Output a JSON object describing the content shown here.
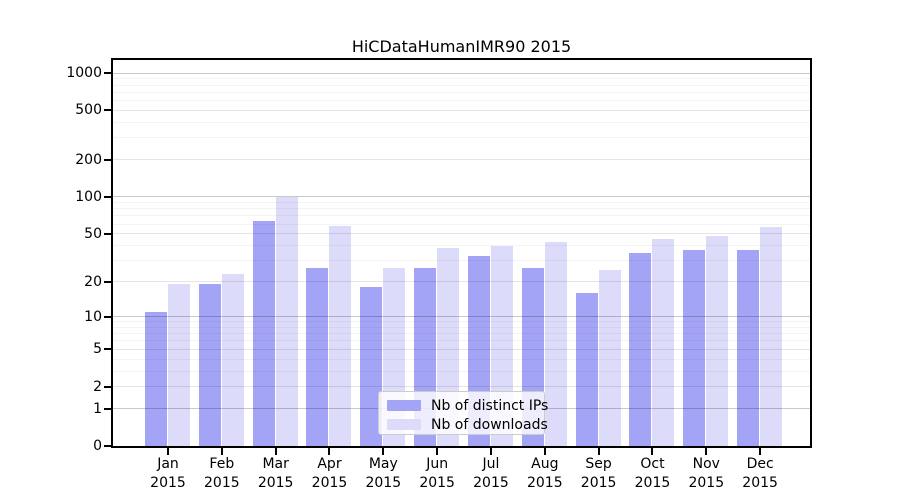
{
  "chart_data": {
    "type": "bar",
    "title": "HiCDataHumanIMR90 2015",
    "categories": [
      {
        "month": "Jan",
        "year": "2015"
      },
      {
        "month": "Feb",
        "year": "2015"
      },
      {
        "month": "Mar",
        "year": "2015"
      },
      {
        "month": "Apr",
        "year": "2015"
      },
      {
        "month": "May",
        "year": "2015"
      },
      {
        "month": "Jun",
        "year": "2015"
      },
      {
        "month": "Jul",
        "year": "2015"
      },
      {
        "month": "Aug",
        "year": "2015"
      },
      {
        "month": "Sep",
        "year": "2015"
      },
      {
        "month": "Oct",
        "year": "2015"
      },
      {
        "month": "Nov",
        "year": "2015"
      },
      {
        "month": "Dec",
        "year": "2015"
      }
    ],
    "series": [
      {
        "name": "Nb of distinct IPs",
        "color": "#a4a4f6",
        "values": [
          11,
          19,
          64,
          26,
          18,
          26,
          33,
          26,
          16,
          35,
          37,
          37
        ]
      },
      {
        "name": "Nb of downloads",
        "color": "#dcdcfa",
        "values": [
          19,
          23,
          100,
          58,
          26,
          38,
          40,
          43,
          25,
          45,
          48,
          57
        ]
      }
    ],
    "y_ticks": [
      0,
      1,
      2,
      5,
      10,
      20,
      50,
      100,
      200,
      500,
      1000
    ],
    "y_scale": "log10(1+y)",
    "ylim": [
      0,
      1275
    ],
    "grid": true,
    "legend_position": "bottom-center"
  },
  "colors": {
    "grid_major": "rgba(0,0,0,0.21)",
    "grid_mid": "rgba(0,0,0,0.10)",
    "grid_minor": "rgba(0,0,0,0.045)",
    "spine": "#000000",
    "background": "#ffffff"
  }
}
